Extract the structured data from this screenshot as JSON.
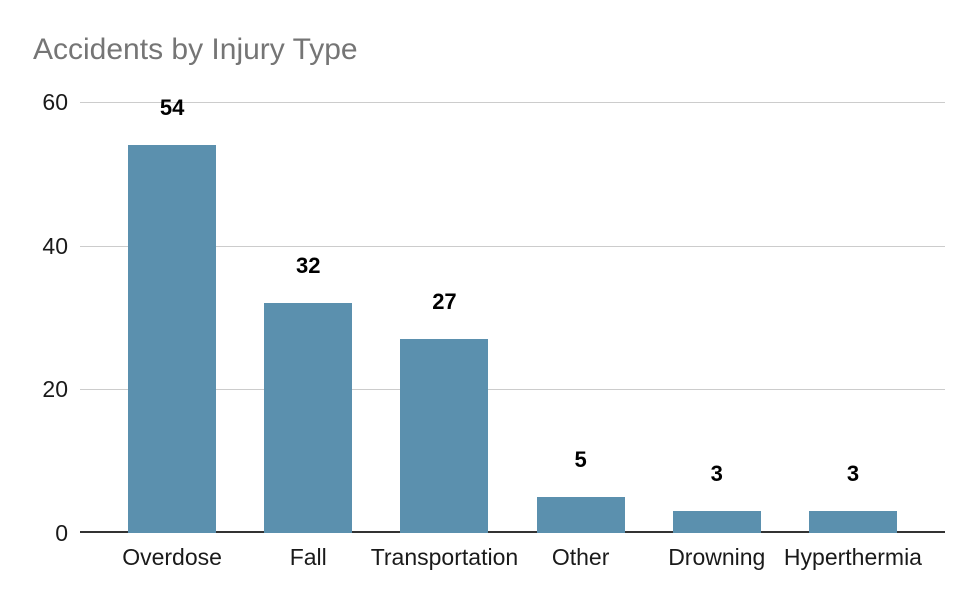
{
  "chart_data": {
    "type": "bar",
    "title": "Accidents by Injury Type",
    "categories": [
      "Overdose",
      "Fall",
      "Transportation",
      "Other",
      "Drowning",
      "Hyperthermia"
    ],
    "values": [
      54,
      32,
      27,
      5,
      3,
      3
    ],
    "xlabel": "",
    "ylabel": "",
    "ylim": [
      0,
      60
    ],
    "yticks": [
      0,
      20,
      40,
      60
    ],
    "grid": "horizontal",
    "legend": "none",
    "data_labels_shown": true,
    "colors": {
      "bar": "#5b90ae",
      "gridline": "#cccccc",
      "axis_baseline": "#333333",
      "title_text": "#757575",
      "tick_text": "#1a1a1a",
      "data_label_text": "#000000",
      "background": "#ffffff"
    }
  }
}
